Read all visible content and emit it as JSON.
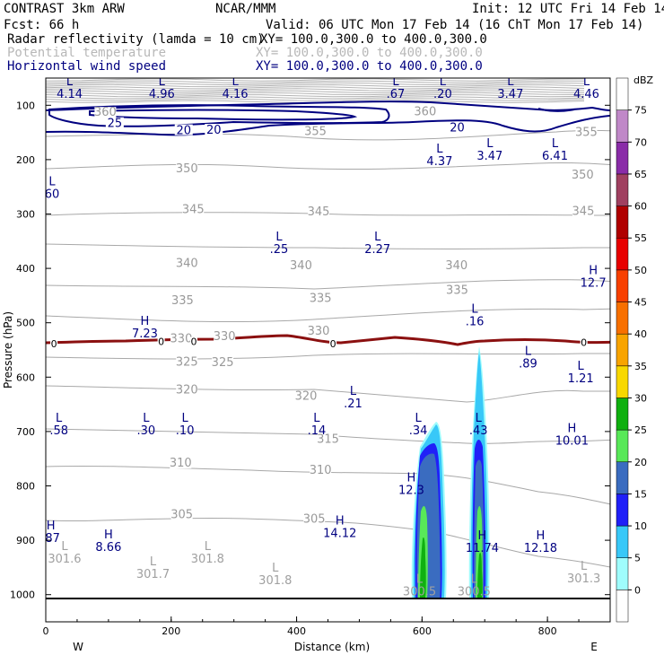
{
  "header": {
    "title": "CONTRAST  3km ARW",
    "center": "NCAR/MMM",
    "init": "Init: 12 UTC Fri 14 Feb 14",
    "fcst": "Fcst:   66 h",
    "valid": "Valid: 06 UTC Mon 17 Feb 14 (16 ChT Mon 17 Feb 14)",
    "fields": [
      {
        "name": "Radar reflectivity (lamda = 10 cm)",
        "xy": "XY= 100.0,300.0 to 400.0,300.0",
        "color": "#000000"
      },
      {
        "name": "Potential temperature",
        "xy": "XY= 100.0,300.0 to 400.0,300.0",
        "color": "#b8b8b8"
      },
      {
        "name": "Horizontal wind speed",
        "xy": "XY= 100.0,300.0 to 400.0,300.0",
        "color": "#000080"
      }
    ]
  },
  "chart_data": {
    "type": "cross-section",
    "xlabel": "Distance (km)",
    "ylabel": "Pressure (hPa)",
    "xlim": [
      0,
      900
    ],
    "ylim": [
      1050,
      50
    ],
    "xticks": [
      0,
      200,
      400,
      600,
      800
    ],
    "yticks": [
      100,
      200,
      300,
      400,
      500,
      600,
      700,
      800,
      900,
      1000
    ],
    "ends": {
      "left": "W",
      "right": "E"
    },
    "colorbar": {
      "title": "dBZ",
      "levels": [
        0,
        5,
        10,
        15,
        20,
        25,
        30,
        35,
        40,
        45,
        50,
        55,
        60,
        65,
        70,
        75
      ],
      "colors": [
        "#ffffff",
        "#9ffcfc",
        "#38c8f8",
        "#2020f8",
        "#3a6cc0",
        "#58e858",
        "#10b010",
        "#f8d800",
        "#f8a400",
        "#f87000",
        "#f84000",
        "#e80000",
        "#b00000",
        "#a04060",
        "#8a2ca8",
        "#c088c8",
        "#ffffff"
      ]
    },
    "surface_line": {
      "x": [
        0,
        900
      ],
      "p": [
        1000,
        1000
      ]
    },
    "theta_labels": [
      {
        "text": "360",
        "x": 95,
        "p": 118
      },
      {
        "text": "360",
        "x": 605,
        "p": 117
      },
      {
        "text": "355",
        "x": 430,
        "p": 153
      },
      {
        "text": "355",
        "x": 862,
        "p": 155
      },
      {
        "text": "350",
        "x": 225,
        "p": 222
      },
      {
        "text": "350",
        "x": 856,
        "p": 233
      },
      {
        "text": "345",
        "x": 235,
        "p": 297
      },
      {
        "text": "345",
        "x": 435,
        "p": 301
      },
      {
        "text": "345",
        "x": 857,
        "p": 300
      },
      {
        "text": "340",
        "x": 225,
        "p": 396
      },
      {
        "text": "340",
        "x": 407,
        "p": 400
      },
      {
        "text": "340",
        "x": 655,
        "p": 400
      },
      {
        "text": "335",
        "x": 218,
        "p": 464
      },
      {
        "text": "335",
        "x": 438,
        "p": 460
      },
      {
        "text": "335",
        "x": 656,
        "p": 445
      },
      {
        "text": "330",
        "x": 216,
        "p": 534
      },
      {
        "text": "330",
        "x": 285,
        "p": 530
      },
      {
        "text": "330",
        "x": 435,
        "p": 520
      },
      {
        "text": "325",
        "x": 225,
        "p": 577
      },
      {
        "text": "325",
        "x": 282,
        "p": 578
      },
      {
        "text": "320",
        "x": 225,
        "p": 628
      },
      {
        "text": "320",
        "x": 415,
        "p": 640
      },
      {
        "text": "315",
        "x": 450,
        "p": 719
      },
      {
        "text": "310",
        "x": 215,
        "p": 763
      },
      {
        "text": "310",
        "x": 438,
        "p": 776
      },
      {
        "text": "305",
        "x": 217,
        "p": 858
      },
      {
        "text": "305",
        "x": 428,
        "p": 866
      }
    ],
    "wind_labels": [
      {
        "text": "25",
        "x": 110,
        "p": 137
      },
      {
        "text": "20",
        "x": 220,
        "p": 150
      },
      {
        "text": "20",
        "x": 268,
        "p": 149
      },
      {
        "text": "20",
        "x": 656,
        "p": 145
      }
    ],
    "zero_labels": [
      {
        "text": "0",
        "x": 13,
        "p": 540
      },
      {
        "text": "0",
        "x": 184,
        "p": 536
      },
      {
        "text": "0",
        "x": 236,
        "p": 536
      },
      {
        "text": "0",
        "x": 458,
        "p": 540
      },
      {
        "text": "0",
        "x": 858,
        "p": 538
      }
    ],
    "pressure_extrema": [
      {
        "type": "L",
        "value": "4.14",
        "x": 38,
        "p": 86
      },
      {
        "type": "L",
        "value": "4.96",
        "x": 185,
        "p": 86
      },
      {
        "type": "L",
        "value": "4.16",
        "x": 302,
        "p": 86
      },
      {
        "type": "L",
        "value": ".67",
        "x": 558,
        "p": 86
      },
      {
        "type": "L",
        "value": ".20",
        "x": 633,
        "p": 86
      },
      {
        "type": "L",
        "value": "3.47",
        "x": 741,
        "p": 86
      },
      {
        "type": "L",
        "value": "4.46",
        "x": 862,
        "p": 86
      },
      {
        "type": "L",
        "value": "4.37",
        "x": 628,
        "p": 210
      },
      {
        "type": "L",
        "value": "3.47",
        "x": 708,
        "p": 200
      },
      {
        "type": "L",
        "value": "6.41",
        "x": 812,
        "p": 200
      },
      {
        "type": "L",
        "value": "60",
        "x": 10,
        "p": 270
      },
      {
        "type": "L",
        "value": ".25",
        "x": 372,
        "p": 372
      },
      {
        "type": "L",
        "value": "2.27",
        "x": 529,
        "p": 372
      },
      {
        "type": "H",
        "value": "12.7",
        "x": 873,
        "p": 434
      },
      {
        "type": "L",
        "value": ".16",
        "x": 684,
        "p": 505
      },
      {
        "type": "H",
        "value": "7.23",
        "x": 158,
        "p": 527
      },
      {
        "type": "L",
        "value": ".89",
        "x": 769,
        "p": 582
      },
      {
        "type": "L",
        "value": "1.21",
        "x": 853,
        "p": 609
      },
      {
        "type": "L",
        "value": ".21",
        "x": 490,
        "p": 656
      },
      {
        "type": "L",
        "value": ".58",
        "x": 21,
        "p": 705
      },
      {
        "type": "L",
        "value": ".30",
        "x": 160,
        "p": 705
      },
      {
        "type": "L",
        "value": ".10",
        "x": 222,
        "p": 705
      },
      {
        "type": "L",
        "value": ".14",
        "x": 432,
        "p": 705
      },
      {
        "type": "L",
        "value": ".34",
        "x": 594,
        "p": 705
      },
      {
        "type": "L",
        "value": ".43",
        "x": 690,
        "p": 705
      },
      {
        "type": "H",
        "value": "10.01",
        "x": 839,
        "p": 724
      },
      {
        "type": "H",
        "value": "12.3",
        "x": 583,
        "p": 815
      },
      {
        "type": "H",
        "value": "14.12",
        "x": 469,
        "p": 894
      },
      {
        "type": "H",
        "value": ".87",
        "x": 8,
        "p": 903
      },
      {
        "type": "H",
        "value": "8.66",
        "x": 100,
        "p": 920
      },
      {
        "type": "H",
        "value": "11.74",
        "x": 696,
        "p": 921
      },
      {
        "type": "H",
        "value": "12.18",
        "x": 789,
        "p": 921
      }
    ],
    "theta_extrema": [
      {
        "type": "L",
        "value": "301.6",
        "x": 30,
        "p": 941
      },
      {
        "type": "L",
        "value": "301.8",
        "x": 258,
        "p": 941
      },
      {
        "type": "L",
        "value": "301.7",
        "x": 171,
        "p": 969
      },
      {
        "type": "L",
        "value": "301.8",
        "x": 366,
        "p": 981
      },
      {
        "type": "L",
        "value": "300.5",
        "x": 596,
        "p": 1001
      },
      {
        "type": "L",
        "value": "300.5",
        "x": 683,
        "p": 1001
      },
      {
        "type": "L",
        "value": "301.3",
        "x": 858,
        "p": 977
      }
    ],
    "reflectivity_cores": [
      {
        "x_center": 600,
        "p_top": 690,
        "p_bottom": 1000,
        "max_dbz": 30
      },
      {
        "x_center": 690,
        "p_top": 560,
        "p_bottom": 1000,
        "max_dbz": 30
      }
    ]
  }
}
